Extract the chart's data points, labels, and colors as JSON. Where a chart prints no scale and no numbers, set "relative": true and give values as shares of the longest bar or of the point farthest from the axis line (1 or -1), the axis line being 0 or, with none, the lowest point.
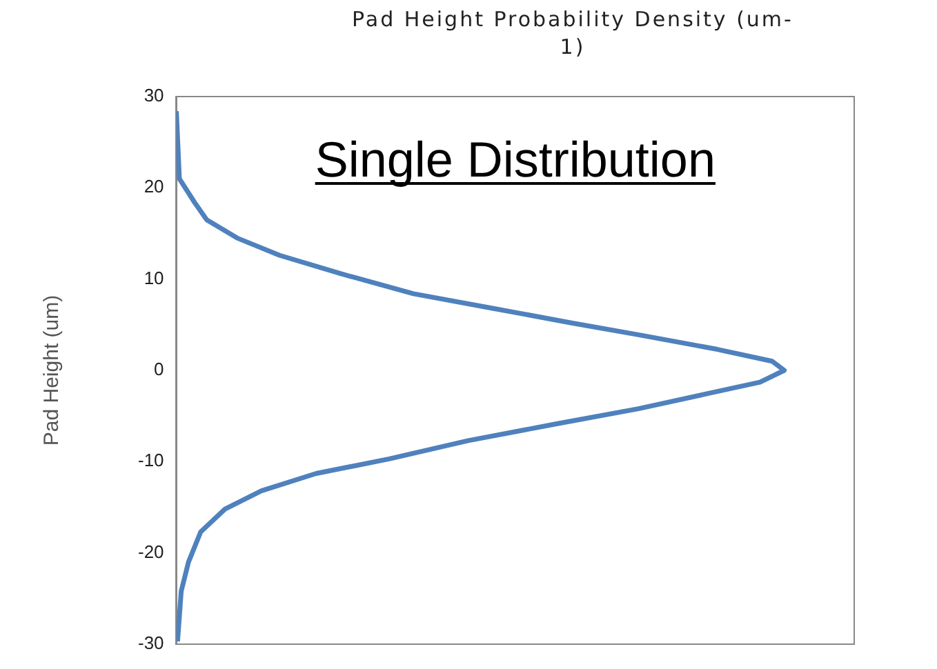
{
  "chart_data": {
    "type": "line",
    "orientation": "horizontal",
    "relative": true,
    "title": "Pad Height Probability Density (um-1)",
    "ylabel": "Pad Height (um)",
    "annotations": [
      "Single Distribution"
    ],
    "x": [
      28.4,
      21,
      18.4,
      16.5,
      14.5,
      12.6,
      10.6,
      8.4,
      6.8,
      5.2,
      3.9,
      2.3,
      1,
      0,
      -1.3,
      -2.6,
      -4.2,
      -5.8,
      -7.7,
      -9.7,
      -11.3,
      -13.2,
      -15.2,
      -17.7,
      -21,
      -24.2,
      -29.7
    ],
    "series": [
      {
        "color": "#4f81bd",
        "values": [
          0,
          0.005,
          0.03,
          0.05,
          0.1,
          0.17,
          0.27,
          0.39,
          0.52,
          0.65,
          0.76,
          0.89,
          0.98,
          1,
          0.96,
          0.87,
          0.76,
          0.63,
          0.48,
          0.35,
          0.23,
          0.14,
          0.08,
          0.04,
          0.02,
          0.008,
          0.002
        ]
      }
    ],
    "ylim": [
      -30,
      30
    ],
    "yticks": [
      -30,
      -20,
      -10,
      0,
      10,
      20,
      30
    ],
    "grid": false,
    "legend": false,
    "marker": "none",
    "line_style": "solid"
  }
}
